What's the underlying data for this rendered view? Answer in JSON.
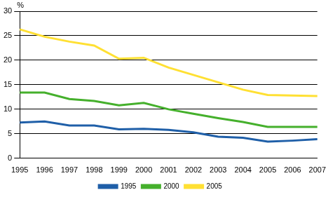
{
  "chart_data": {
    "type": "line",
    "y_label": "%",
    "categories": [
      "1995",
      "1996",
      "1997",
      "1998",
      "1999",
      "2000",
      "2001",
      "2002",
      "2003",
      "2004",
      "2005",
      "2006",
      "2007"
    ],
    "series": [
      {
        "name": "1995",
        "color": "#1f5fa8",
        "values": [
          7.3,
          7.5,
          6.7,
          6.7,
          5.9,
          6.0,
          5.8,
          5.3,
          4.4,
          4.2,
          3.4,
          3.6,
          3.9
        ]
      },
      {
        "name": "2000",
        "color": "#45b02c",
        "values": [
          13.4,
          13.4,
          12.1,
          11.7,
          10.8,
          11.3,
          10.0,
          9.1,
          8.2,
          7.4,
          6.4,
          6.4,
          6.4
        ]
      },
      {
        "name": "2005",
        "color": "#ffe033",
        "values": [
          26.3,
          24.8,
          23.8,
          23.0,
          20.3,
          20.5,
          18.5,
          17.0,
          15.5,
          14.0,
          12.9,
          12.8,
          12.7
        ]
      }
    ],
    "ylim": [
      0,
      30
    ],
    "yticks": [
      0,
      5,
      10,
      15,
      20,
      25,
      30
    ],
    "grid": true,
    "legend": "bottom"
  }
}
